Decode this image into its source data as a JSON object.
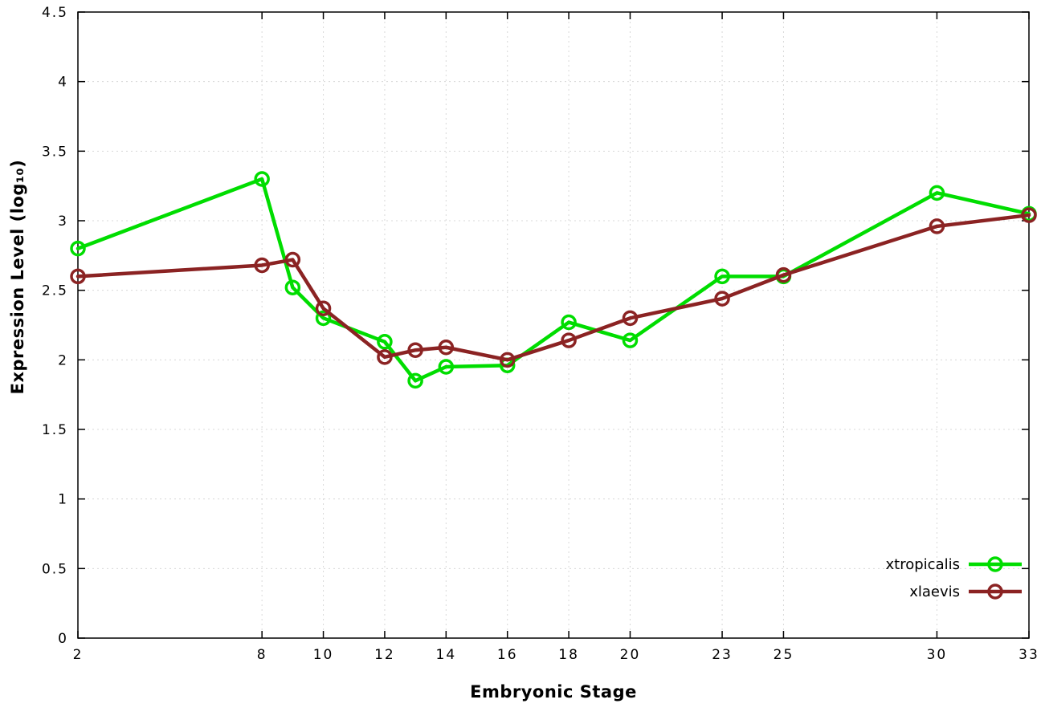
{
  "chart_data": {
    "type": "line",
    "title": "",
    "xlabel": "Embryonic Stage",
    "ylabel": "Expression Level (log₁₀)",
    "xlim": [
      2,
      33
    ],
    "ylim": [
      0,
      4.5
    ],
    "x_ticks": [
      2,
      8,
      10,
      12,
      14,
      16,
      18,
      20,
      23,
      25,
      30,
      33
    ],
    "y_ticks": [
      0,
      0.5,
      1,
      1.5,
      2,
      2.5,
      3,
      3.5,
      4,
      4.5
    ],
    "grid": true,
    "legend_position": "bottom-right",
    "marker": "open-circle",
    "x": [
      2,
      8,
      9,
      10,
      12,
      13,
      14,
      16,
      18,
      20,
      23,
      25,
      30,
      33
    ],
    "series": [
      {
        "name": "xtropicalis",
        "color": "#00dd00",
        "values": [
          2.8,
          3.3,
          2.52,
          2.3,
          2.13,
          1.85,
          1.95,
          1.96,
          2.27,
          2.14,
          2.6,
          2.6,
          3.2,
          3.05
        ]
      },
      {
        "name": "xlaevis",
        "color": "#8b2323",
        "values": [
          2.6,
          2.68,
          2.72,
          2.37,
          2.02,
          2.07,
          2.09,
          2.0,
          2.14,
          2.3,
          2.44,
          2.61,
          2.96,
          3.04
        ]
      }
    ],
    "colors": {
      "grid": "#d8d8d8",
      "axis": "#000000",
      "background": "#ffffff"
    }
  }
}
